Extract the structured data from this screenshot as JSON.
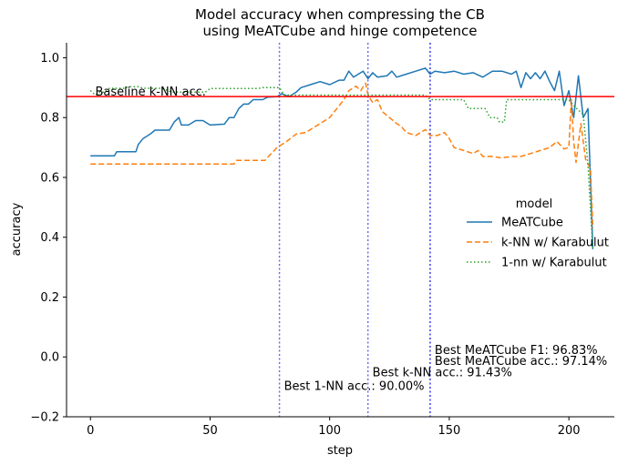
{
  "chart_data": {
    "type": "line",
    "title": [
      "Model accuracy when compressing the CB",
      "using MeATCube and hinge competence"
    ],
    "xlabel": "step",
    "ylabel": "accuracy",
    "xlim": [
      -10,
      219
    ],
    "ylim": [
      -0.2,
      1.05
    ],
    "xticks": [
      0,
      50,
      100,
      150,
      200
    ],
    "xtick_labels": [
      "0",
      "50",
      "100",
      "150",
      "200"
    ],
    "yticks": [
      -0.2,
      0.0,
      0.2,
      0.4,
      0.6,
      0.8,
      1.0
    ],
    "ytick_labels": [
      "−0.2",
      "0.0",
      "0.2",
      "0.4",
      "0.6",
      "0.8",
      "1.0"
    ],
    "grid": false,
    "legend": {
      "title": "model",
      "placement": "center-right",
      "entries": [
        "MeATCube",
        "k-NN w/ Karabulut",
        "1-nn w/ Karabulut"
      ]
    },
    "series": [
      {
        "name": "MeATCube",
        "color": "#1f77b4",
        "style": "solid",
        "points": [
          [
            0,
            0.672
          ],
          [
            10,
            0.672
          ],
          [
            11,
            0.686
          ],
          [
            19,
            0.686
          ],
          [
            20,
            0.71
          ],
          [
            22,
            0.73
          ],
          [
            25,
            0.745
          ],
          [
            27,
            0.758
          ],
          [
            33,
            0.758
          ],
          [
            35,
            0.785
          ],
          [
            37,
            0.8
          ],
          [
            38,
            0.775
          ],
          [
            41,
            0.775
          ],
          [
            44,
            0.79
          ],
          [
            47,
            0.79
          ],
          [
            50,
            0.775
          ],
          [
            56,
            0.778
          ],
          [
            58,
            0.8
          ],
          [
            60,
            0.8
          ],
          [
            61,
            0.815
          ],
          [
            62,
            0.83
          ],
          [
            64,
            0.845
          ],
          [
            66,
            0.845
          ],
          [
            68,
            0.86
          ],
          [
            72,
            0.86
          ],
          [
            74,
            0.868
          ],
          [
            78,
            0.87
          ],
          [
            80,
            0.88
          ],
          [
            83,
            0.87
          ],
          [
            86,
            0.885
          ],
          [
            88,
            0.9
          ],
          [
            92,
            0.91
          ],
          [
            96,
            0.92
          ],
          [
            100,
            0.91
          ],
          [
            104,
            0.925
          ],
          [
            106,
            0.925
          ],
          [
            108,
            0.955
          ],
          [
            110,
            0.935
          ],
          [
            114,
            0.955
          ],
          [
            116,
            0.93
          ],
          [
            118,
            0.95
          ],
          [
            120,
            0.935
          ],
          [
            124,
            0.94
          ],
          [
            126,
            0.955
          ],
          [
            128,
            0.935
          ],
          [
            132,
            0.945
          ],
          [
            136,
            0.955
          ],
          [
            140,
            0.965
          ],
          [
            142,
            0.945
          ],
          [
            144,
            0.955
          ],
          [
            148,
            0.95
          ],
          [
            152,
            0.955
          ],
          [
            156,
            0.945
          ],
          [
            160,
            0.95
          ],
          [
            164,
            0.935
          ],
          [
            168,
            0.955
          ],
          [
            172,
            0.955
          ],
          [
            176,
            0.945
          ],
          [
            178,
            0.955
          ],
          [
            180,
            0.9
          ],
          [
            182,
            0.95
          ],
          [
            184,
            0.93
          ],
          [
            186,
            0.95
          ],
          [
            188,
            0.93
          ],
          [
            190,
            0.955
          ],
          [
            192,
            0.92
          ],
          [
            194,
            0.89
          ],
          [
            196,
            0.955
          ],
          [
            198,
            0.84
          ],
          [
            200,
            0.89
          ],
          [
            202,
            0.8
          ],
          [
            204,
            0.94
          ],
          [
            206,
            0.8
          ],
          [
            208,
            0.83
          ],
          [
            210,
            0.36
          ]
        ]
      },
      {
        "name": "k-NN w/ Karabulut",
        "color": "#ff7f0e",
        "style": "dashed",
        "points": [
          [
            0,
            0.645
          ],
          [
            60,
            0.645
          ],
          [
            61,
            0.657
          ],
          [
            73,
            0.657
          ],
          [
            75,
            0.675
          ],
          [
            78,
            0.7
          ],
          [
            82,
            0.72
          ],
          [
            86,
            0.745
          ],
          [
            90,
            0.75
          ],
          [
            93,
            0.765
          ],
          [
            96,
            0.78
          ],
          [
            100,
            0.8
          ],
          [
            103,
            0.83
          ],
          [
            106,
            0.86
          ],
          [
            108,
            0.89
          ],
          [
            111,
            0.905
          ],
          [
            113,
            0.89
          ],
          [
            115,
            0.915
          ],
          [
            116,
            0.875
          ],
          [
            118,
            0.85
          ],
          [
            120,
            0.86
          ],
          [
            122,
            0.82
          ],
          [
            125,
            0.8
          ],
          [
            128,
            0.78
          ],
          [
            130,
            0.77
          ],
          [
            132,
            0.75
          ],
          [
            136,
            0.74
          ],
          [
            140,
            0.76
          ],
          [
            142,
            0.74
          ],
          [
            145,
            0.74
          ],
          [
            148,
            0.75
          ],
          [
            150,
            0.73
          ],
          [
            152,
            0.7
          ],
          [
            156,
            0.69
          ],
          [
            160,
            0.68
          ],
          [
            162,
            0.69
          ],
          [
            164,
            0.67
          ],
          [
            168,
            0.67
          ],
          [
            172,
            0.665
          ],
          [
            176,
            0.67
          ],
          [
            180,
            0.67
          ],
          [
            184,
            0.68
          ],
          [
            188,
            0.69
          ],
          [
            192,
            0.7
          ],
          [
            195,
            0.72
          ],
          [
            198,
            0.695
          ],
          [
            200,
            0.7
          ],
          [
            201,
            0.86
          ],
          [
            202,
            0.72
          ],
          [
            203,
            0.65
          ],
          [
            205,
            0.78
          ],
          [
            207,
            0.66
          ],
          [
            209,
            0.63
          ],
          [
            210,
            0.43
          ]
        ]
      },
      {
        "name": "1-nn w/ Karabulut",
        "color": "#2ca02c",
        "style": "dotted",
        "points": [
          [
            0,
            0.89
          ],
          [
            2,
            0.875
          ],
          [
            4,
            0.885
          ],
          [
            6,
            0.885
          ],
          [
            8,
            0.898
          ],
          [
            14,
            0.898
          ],
          [
            16,
            0.903
          ],
          [
            20,
            0.903
          ],
          [
            22,
            0.898
          ],
          [
            30,
            0.898
          ],
          [
            34,
            0.885
          ],
          [
            48,
            0.885
          ],
          [
            50,
            0.897
          ],
          [
            70,
            0.897
          ],
          [
            72,
            0.9
          ],
          [
            79,
            0.9
          ],
          [
            81,
            0.875
          ],
          [
            140,
            0.875
          ],
          [
            142,
            0.86
          ],
          [
            156,
            0.86
          ],
          [
            158,
            0.83
          ],
          [
            165,
            0.83
          ],
          [
            167,
            0.8
          ],
          [
            170,
            0.8
          ],
          [
            171,
            0.785
          ],
          [
            173,
            0.785
          ],
          [
            174,
            0.86
          ],
          [
            200,
            0.86
          ],
          [
            202,
            0.84
          ],
          [
            206,
            0.81
          ],
          [
            208,
            0.64
          ],
          [
            210,
            0.36
          ]
        ]
      }
    ],
    "hlines": [
      {
        "y": 0.87,
        "color": "#ff0000",
        "label": "Baseline k-NN acc."
      }
    ],
    "vlines": [
      {
        "x": 79,
        "color": "#6b6bf0",
        "style": "dotted",
        "labels": [
          "Best 1-NN acc.: 90.00%"
        ],
        "label_y": [
          -0.11
        ]
      },
      {
        "x": 116,
        "color": "#6b6bf0",
        "style": "dotted",
        "labels": [
          "Best k-NN acc.: 91.43%"
        ],
        "label_y": [
          -0.065
        ]
      },
      {
        "x": 142,
        "color": "#3a3ae0",
        "style": "dotted",
        "labels": [
          "Best MeATCube F1: 96.83%",
          "Best MeATCube acc.: 97.14%"
        ],
        "label_y": [
          0.01,
          -0.026
        ]
      }
    ]
  }
}
